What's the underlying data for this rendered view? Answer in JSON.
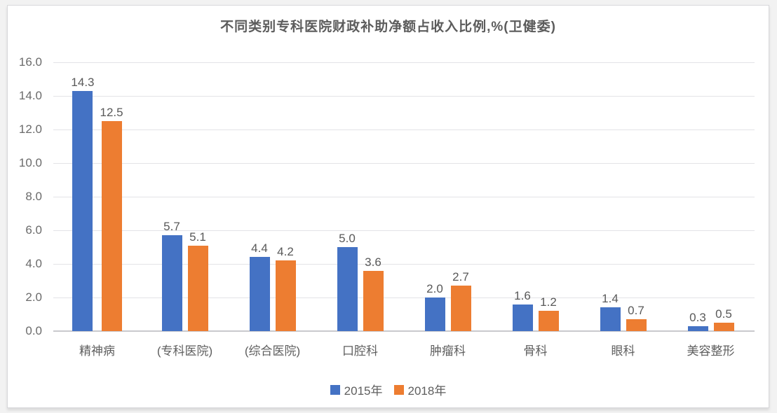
{
  "chart_data": {
    "type": "bar",
    "title": "不同类别专科医院财政补助净额占收入比例,%(卫健委)",
    "categories": [
      "精神病",
      "(专科医院)",
      "(综合医院)",
      "口腔科",
      "肿瘤科",
      "骨科",
      "眼科",
      "美容整形"
    ],
    "series": [
      {
        "name": "2015年",
        "color": "#4472C4",
        "values": [
          14.3,
          5.7,
          4.4,
          5.0,
          2.0,
          1.6,
          1.4,
          0.3
        ]
      },
      {
        "name": "2018年",
        "color": "#ED7D31",
        "values": [
          12.5,
          5.1,
          4.2,
          3.6,
          2.7,
          1.2,
          0.7,
          0.5
        ]
      }
    ],
    "xlabel": "",
    "ylabel": "",
    "ylim": [
      0,
      16
    ],
    "ytick_step": 2,
    "ytick_labels": [
      "0.0",
      "2.0",
      "4.0",
      "6.0",
      "8.0",
      "10.0",
      "12.0",
      "14.0",
      "16.0"
    ],
    "grid": true,
    "legend_position": "bottom",
    "value_labels_shown": true
  },
  "colors": {
    "card_background": "#ffffff",
    "card_border": "#d7d7da",
    "gridline": "#e3e3e7",
    "axis_line": "#c9c9cd",
    "text": "#5c5c5c"
  }
}
